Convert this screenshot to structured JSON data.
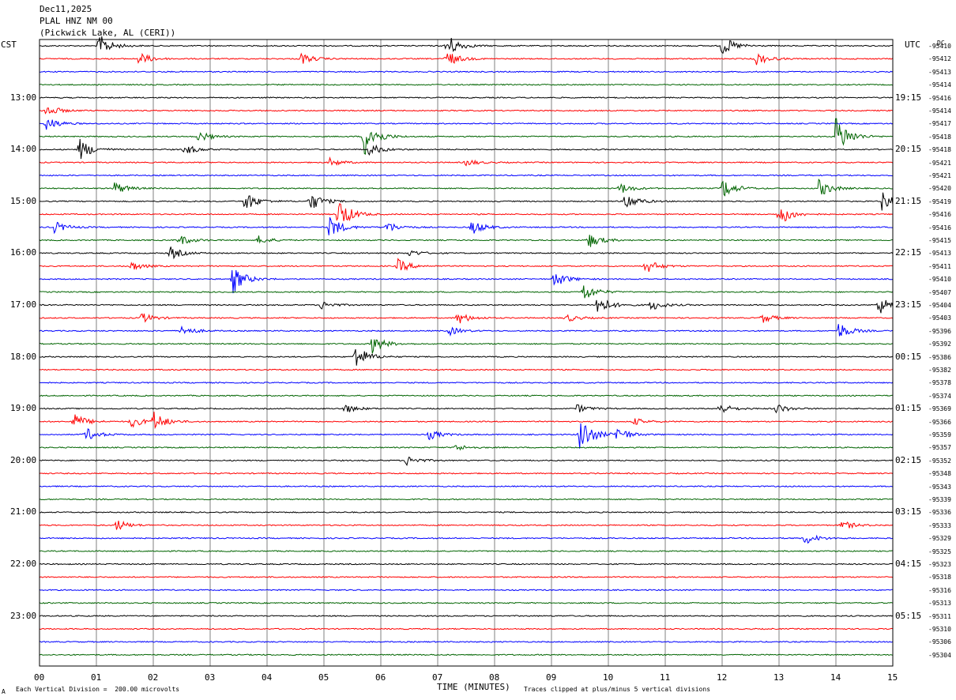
{
  "header": {
    "line1": "Dec11,2025",
    "line2": "PLAL HNZ NM 00",
    "line3": "(Pickwick Lake, AL (CERI))"
  },
  "labels": {
    "left_zone": "CST",
    "right_zone": "UTC",
    "dc_header": "DC",
    "x_axis": "TIME (MINUTES)",
    "scale_note": "Each Vertical Division =  200.00 microvolts",
    "clip_note": "Traces clipped at plus/minus 5 vertical divisions",
    "corner_mark": "A"
  },
  "chart_data": {
    "type": "line",
    "title": "PLAL HNZ NM 00",
    "xlabel": "TIME (MINUTES)",
    "ylabel": "",
    "xlim": [
      0,
      15
    ],
    "x_ticks": [
      "00",
      "01",
      "02",
      "03",
      "04",
      "05",
      "06",
      "07",
      "08",
      "09",
      "10",
      "11",
      "12",
      "13",
      "14",
      "15"
    ],
    "left_time_labels": [
      "13:00",
      "14:00",
      "15:00",
      "16:00",
      "17:00",
      "18:00",
      "19:00",
      "20:00",
      "21:00",
      "22:00",
      "23:00"
    ],
    "right_time_labels": [
      "19:15",
      "20:15",
      "21:15",
      "22:15",
      "23:15",
      "00:15",
      "01:15",
      "02:15",
      "03:15",
      "04:15",
      "05:15"
    ],
    "trace_colors": [
      "#000000",
      "#ff0000",
      "#0000ff",
      "#006400"
    ],
    "dc_offsets": [
      -95410,
      -95412,
      -95413,
      -95414,
      -95416,
      -95414,
      -95417,
      -95418,
      -95418,
      -95421,
      -95421,
      -95420,
      -95419,
      -95416,
      -95416,
      -95415,
      -95413,
      -95411,
      -95410,
      -95407,
      -95404,
      -95403,
      -95396,
      -95392,
      -95386,
      -95382,
      -95378,
      -95374,
      -95369,
      -95366,
      -95359,
      -95357,
      -95352,
      -95348,
      -95343,
      -95339,
      -95336,
      -95333,
      -95329,
      -95325,
      -95323,
      -95318,
      -95316,
      -95313,
      -95311,
      -95310,
      -95306,
      -95304
    ],
    "events": [
      {
        "trace": 0,
        "minute": 1.05,
        "amp": 1.6
      },
      {
        "trace": 0,
        "minute": 7.15,
        "amp": 1.8
      },
      {
        "trace": 0,
        "minute": 12.0,
        "amp": 1.4
      },
      {
        "trace": 1,
        "minute": 1.75,
        "amp": 0.9
      },
      {
        "trace": 1,
        "minute": 4.6,
        "amp": 0.8
      },
      {
        "trace": 1,
        "minute": 7.15,
        "amp": 1.2
      },
      {
        "trace": 1,
        "minute": 12.6,
        "amp": 0.9
      },
      {
        "trace": 5,
        "minute": 0.12,
        "amp": 0.9
      },
      {
        "trace": 6,
        "minute": 0.12,
        "amp": 1.0
      },
      {
        "trace": 7,
        "minute": 5.7,
        "amp": 3.0
      },
      {
        "trace": 7,
        "minute": 14.0,
        "amp": 3.0
      },
      {
        "trace": 7,
        "minute": 2.8,
        "amp": 0.8
      },
      {
        "trace": 8,
        "minute": 0.7,
        "amp": 1.6
      },
      {
        "trace": 8,
        "minute": 2.55,
        "amp": 0.8
      },
      {
        "trace": 8,
        "minute": 5.8,
        "amp": 0.9
      },
      {
        "trace": 9,
        "minute": 5.1,
        "amp": 0.6
      },
      {
        "trace": 9,
        "minute": 7.5,
        "amp": 0.5
      },
      {
        "trace": 11,
        "minute": 1.3,
        "amp": 1.0
      },
      {
        "trace": 11,
        "minute": 10.2,
        "amp": 0.8
      },
      {
        "trace": 11,
        "minute": 12.0,
        "amp": 1.5
      },
      {
        "trace": 11,
        "minute": 13.7,
        "amp": 1.3
      },
      {
        "trace": 12,
        "minute": 3.6,
        "amp": 1.5
      },
      {
        "trace": 12,
        "minute": 4.75,
        "amp": 1.4
      },
      {
        "trace": 12,
        "minute": 10.3,
        "amp": 1.3
      },
      {
        "trace": 12,
        "minute": 14.8,
        "amp": 1.4
      },
      {
        "trace": 13,
        "minute": 5.25,
        "amp": 2.4
      },
      {
        "trace": 13,
        "minute": 13.0,
        "amp": 1.7
      },
      {
        "trace": 14,
        "minute": 0.25,
        "amp": 0.9
      },
      {
        "trace": 14,
        "minute": 5.1,
        "amp": 1.6
      },
      {
        "trace": 14,
        "minute": 7.6,
        "amp": 1.1
      },
      {
        "trace": 14,
        "minute": 6.1,
        "amp": 0.8
      },
      {
        "trace": 15,
        "minute": 2.45,
        "amp": 0.8
      },
      {
        "trace": 15,
        "minute": 3.85,
        "amp": 0.6
      },
      {
        "trace": 15,
        "minute": 9.65,
        "amp": 1.1
      },
      {
        "trace": 16,
        "minute": 2.3,
        "amp": 0.9
      },
      {
        "trace": 16,
        "minute": 6.5,
        "amp": 0.5
      },
      {
        "trace": 17,
        "minute": 1.6,
        "amp": 0.7
      },
      {
        "trace": 17,
        "minute": 6.3,
        "amp": 1.0
      },
      {
        "trace": 17,
        "minute": 10.65,
        "amp": 1.1
      },
      {
        "trace": 18,
        "minute": 3.4,
        "amp": 2.0
      },
      {
        "trace": 18,
        "minute": 9.05,
        "amp": 1.2
      },
      {
        "trace": 19,
        "minute": 9.55,
        "amp": 1.4
      },
      {
        "trace": 20,
        "minute": 4.95,
        "amp": 0.6
      },
      {
        "trace": 20,
        "minute": 9.8,
        "amp": 1.5
      },
      {
        "trace": 20,
        "minute": 10.75,
        "amp": 0.8
      },
      {
        "trace": 20,
        "minute": 14.75,
        "amp": 1.4
      },
      {
        "trace": 21,
        "minute": 1.8,
        "amp": 0.7
      },
      {
        "trace": 21,
        "minute": 7.35,
        "amp": 0.9
      },
      {
        "trace": 21,
        "minute": 9.25,
        "amp": 0.6
      },
      {
        "trace": 21,
        "minute": 12.7,
        "amp": 0.7
      },
      {
        "trace": 22,
        "minute": 2.5,
        "amp": 0.8
      },
      {
        "trace": 22,
        "minute": 7.2,
        "amp": 0.6
      },
      {
        "trace": 22,
        "minute": 14.05,
        "amp": 1.2
      },
      {
        "trace": 23,
        "minute": 5.85,
        "amp": 1.3
      },
      {
        "trace": 24,
        "minute": 5.55,
        "amp": 1.8
      },
      {
        "trace": 28,
        "minute": 5.35,
        "amp": 0.7
      },
      {
        "trace": 28,
        "minute": 9.45,
        "amp": 0.6
      },
      {
        "trace": 28,
        "minute": 11.95,
        "amp": 0.8
      },
      {
        "trace": 28,
        "minute": 12.95,
        "amp": 0.7
      },
      {
        "trace": 29,
        "minute": 0.6,
        "amp": 1.2
      },
      {
        "trace": 29,
        "minute": 1.6,
        "amp": 0.9
      },
      {
        "trace": 29,
        "minute": 2.0,
        "amp": 1.4
      },
      {
        "trace": 29,
        "minute": 10.45,
        "amp": 0.5
      },
      {
        "trace": 30,
        "minute": 0.8,
        "amp": 1.0
      },
      {
        "trace": 30,
        "minute": 6.85,
        "amp": 0.7
      },
      {
        "trace": 30,
        "minute": 9.5,
        "amp": 2.8
      },
      {
        "trace": 30,
        "minute": 10.15,
        "amp": 1.1
      },
      {
        "trace": 31,
        "minute": 7.3,
        "amp": 0.5
      },
      {
        "trace": 32,
        "minute": 6.45,
        "amp": 0.7
      },
      {
        "trace": 37,
        "minute": 1.35,
        "amp": 0.8
      },
      {
        "trace": 37,
        "minute": 14.1,
        "amp": 0.7
      },
      {
        "trace": 38,
        "minute": 13.45,
        "amp": 0.9
      }
    ]
  }
}
